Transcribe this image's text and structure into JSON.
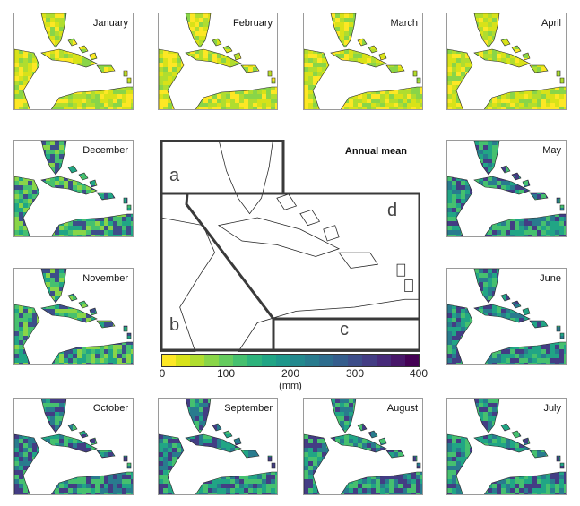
{
  "months": [
    {
      "id": "jan",
      "label": "January",
      "tone": "dry"
    },
    {
      "id": "feb",
      "label": "February",
      "tone": "dry"
    },
    {
      "id": "mar",
      "label": "March",
      "tone": "dry"
    },
    {
      "id": "apr",
      "label": "April",
      "tone": "dry"
    },
    {
      "id": "dec",
      "label": "December",
      "tone": "mid"
    },
    {
      "id": "may",
      "label": "May",
      "tone": "wet"
    },
    {
      "id": "nov",
      "label": "November",
      "tone": "mid"
    },
    {
      "id": "jun",
      "label": "June",
      "tone": "wet"
    },
    {
      "id": "oct",
      "label": "October",
      "tone": "wet"
    },
    {
      "id": "sep",
      "label": "September",
      "tone": "wet"
    },
    {
      "id": "aug",
      "label": "August",
      "tone": "wet"
    },
    {
      "id": "jul",
      "label": "July",
      "tone": "wet"
    }
  ],
  "center": {
    "title": "Annual mean",
    "regions": [
      "a",
      "b",
      "c",
      "d"
    ]
  },
  "colorbar": {
    "ticks": [
      "0",
      "100",
      "200",
      "300",
      "400"
    ],
    "unit": "(mm)",
    "colors": [
      "#fde725",
      "#d8e219",
      "#b0dd2f",
      "#89d548",
      "#65cb5e",
      "#46c06f",
      "#2eb37c",
      "#21a585",
      "#1f978b",
      "#23898e",
      "#297b8e",
      "#2e6d8e",
      "#355e8d",
      "#3d4e8a",
      "#433d84",
      "#472a7a",
      "#481769",
      "#440154"
    ]
  },
  "palette": {
    "dry": [
      "#fde725",
      "#d8e219",
      "#b0dd2f",
      "#89d548"
    ],
    "mid": [
      "#89d548",
      "#46c06f",
      "#21a585",
      "#3d4e8a"
    ],
    "wet": [
      "#46c06f",
      "#21a585",
      "#297b8e",
      "#433d84"
    ]
  }
}
